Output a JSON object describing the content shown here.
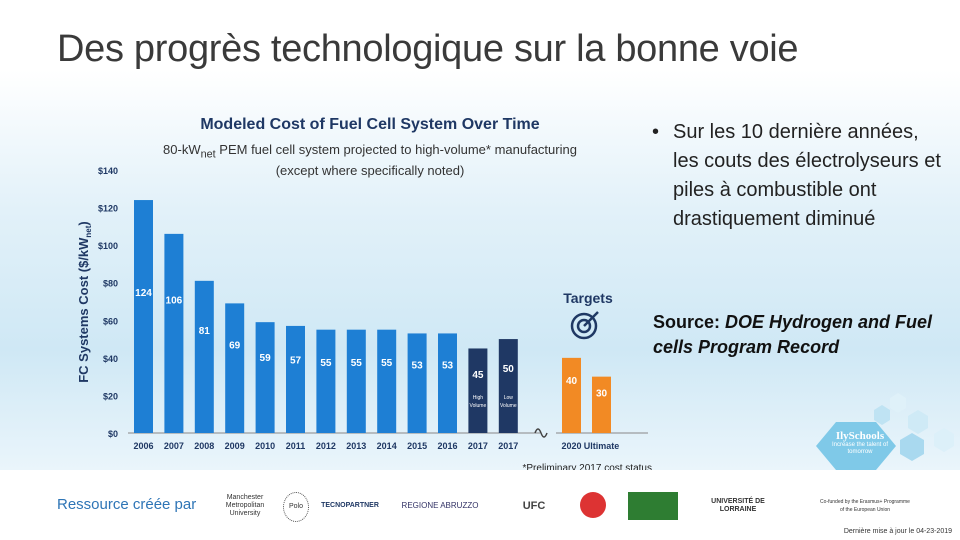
{
  "slide": {
    "title": "Des progrès technologique sur la bonne voie",
    "bullet_symbol": "•",
    "bullet": "Sur les 10 dernière années, les couts des électrolyseurs et piles à combustible ont drastiquement diminué",
    "source_prefix": "Source: ",
    "source_italic": "DOE Hydrogen and Fuel cells Program Record"
  },
  "footer": {
    "label": "Ressource créée par",
    "updated": "Dernière mise à jour le 04-23-2019",
    "logos": [
      "Manchester Metropolitan University",
      "Polo",
      "TECNOPARTNER",
      "REGIONE ABRUZZO",
      "UFC",
      "",
      "",
      "UNIVERSITÉ DE LORRAINE",
      "Co-funded by the Erasmus+ Programme of the European Union"
    ],
    "badge_title": "IlySchools",
    "badge_sub": "Increase the talent of tomorrow"
  },
  "colors": {
    "bar_blue": "#1e7fd4",
    "bar_dark": "#1f3864",
    "bar_orange": "#f28a24",
    "title_color": "#1f3864",
    "accent": "#2e75b6"
  },
  "chart_data": {
    "type": "bar",
    "title": "Modeled Cost of Fuel Cell System Over Time",
    "subtitle_pre": "80-kW",
    "subtitle_sub": "net",
    "subtitle_post": " PEM fuel cell system projected to high-volume* manufacturing",
    "subtitle_line2": "(except where specifically noted)",
    "ylabel": "FC Systems Cost ($/kW",
    "ylabel_sub": "net",
    "ylabel_close": ")",
    "ylim": [
      0,
      140
    ],
    "yticks": [
      "$0",
      "$20",
      "$40",
      "$60",
      "$80",
      "$100",
      "$120",
      "$140"
    ],
    "categories": [
      "2006",
      "2007",
      "2008",
      "2009",
      "2010",
      "2011",
      "2012",
      "2013",
      "2014",
      "2015",
      "2016",
      "2017",
      "2017",
      "2020",
      "Ultimate"
    ],
    "values": [
      124,
      106,
      81,
      69,
      59,
      57,
      55,
      55,
      55,
      53,
      53,
      45,
      50,
      40,
      30
    ],
    "series_kind": [
      "history",
      "history",
      "history",
      "history",
      "history",
      "history",
      "history",
      "history",
      "history",
      "history",
      "history",
      "high",
      "low",
      "target",
      "target"
    ],
    "bar_notes": [
      "",
      "",
      "",
      "",
      "",
      "",
      "",
      "",
      "",
      "",
      "",
      "High Volume",
      "Low Volume",
      "",
      ""
    ],
    "targets_label": "Targets",
    "footnote": "*Preliminary 2017 cost status",
    "grid": false
  }
}
